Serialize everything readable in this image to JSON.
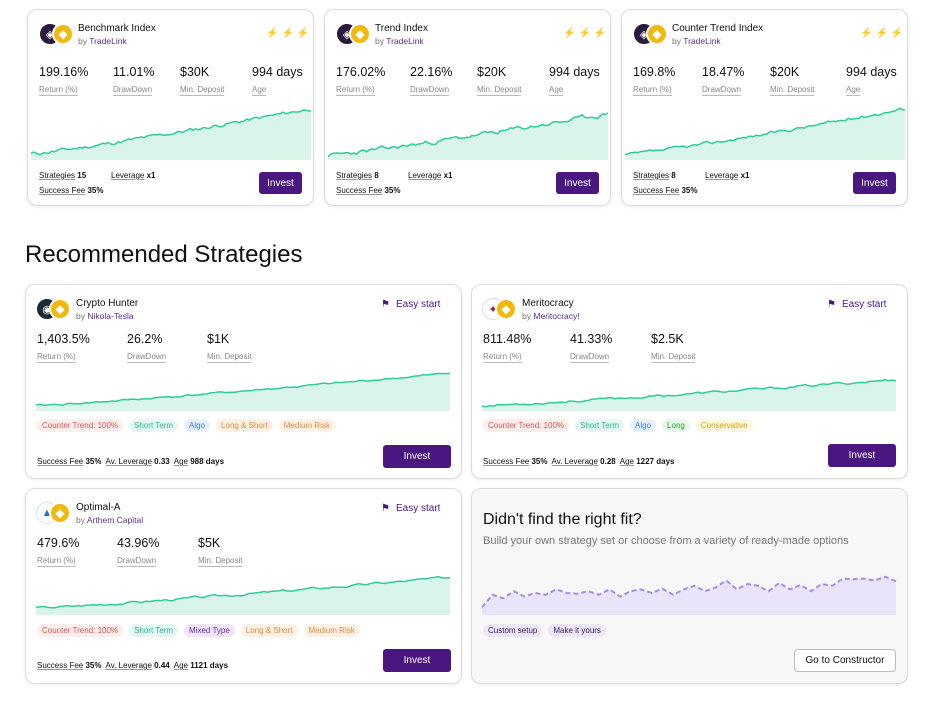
{
  "colors": {
    "accent": "#4a1780",
    "line": "#2ecc9a",
    "fill": "#d9f5ea",
    "fit_line": "#a58fe0",
    "fit_fill": "#eae4fa"
  },
  "top_cards": [
    {
      "name": "Benchmark Index",
      "by_prefix": "by",
      "by": "TradeLink",
      "stats": [
        {
          "value": "199.16%",
          "label": "Return (%)"
        },
        {
          "value": "11.01%",
          "label": "DrawDown"
        },
        {
          "value": "$30K",
          "label": "Min. Deposit"
        },
        {
          "value": "994 days",
          "label": "Age"
        }
      ],
      "strategies_label": "Strategies",
      "strategies": "15",
      "leverage_label": "Leverage",
      "leverage": "x1",
      "fee_label": "Success Fee",
      "fee": "35%",
      "invest": "Invest"
    },
    {
      "name": "Trend Index",
      "by_prefix": "by",
      "by": "TradeLink",
      "stats": [
        {
          "value": "176.02%",
          "label": "Return (%)"
        },
        {
          "value": "22.16%",
          "label": "DrawDown"
        },
        {
          "value": "$20K",
          "label": "Min. Deposit"
        },
        {
          "value": "994 days",
          "label": "Age"
        }
      ],
      "strategies_label": "Strategies",
      "strategies": "8",
      "leverage_label": "Leverage",
      "leverage": "x1",
      "fee_label": "Success Fee",
      "fee": "35%",
      "invest": "Invest"
    },
    {
      "name": "Counter Trend Index",
      "by_prefix": "by",
      "by": "TradeLink",
      "stats": [
        {
          "value": "169.8%",
          "label": "Return (%)"
        },
        {
          "value": "18.47%",
          "label": "DrawDown"
        },
        {
          "value": "$20K",
          "label": "Min. Deposit"
        },
        {
          "value": "994 days",
          "label": "Age"
        }
      ],
      "strategies_label": "Strategies",
      "strategies": "8",
      "leverage_label": "Leverage",
      "leverage": "x1",
      "fee_label": "Success Fee",
      "fee": "35%",
      "invest": "Invest"
    }
  ],
  "section_title": "Recommended Strategies",
  "rec_cards": [
    {
      "name": "Crypto Hunter",
      "by_prefix": "by",
      "by": "Nikola-Tesla",
      "easy": "Easy start",
      "stats": [
        {
          "value": "1,403.5%",
          "label": "Return (%)"
        },
        {
          "value": "26.2%",
          "label": "DrawDown"
        },
        {
          "value": "$1K",
          "label": "Min. Deposit"
        }
      ],
      "tags": [
        {
          "text": "Counter Trend: 100%",
          "style": "red"
        },
        {
          "text": "Short Term",
          "style": "teal"
        },
        {
          "text": "Algo",
          "style": "blue"
        },
        {
          "text": "Long & Short",
          "style": "orange"
        },
        {
          "text": "Medium Risk",
          "style": "orange"
        }
      ],
      "fee_label": "Success Fee",
      "fee": "35%",
      "lev_label": "Av. Leverage",
      "lev": "0.33",
      "age_label": "Age",
      "age": "988 days",
      "invest": "Invest"
    },
    {
      "name": "Meritocracy",
      "by_prefix": "by",
      "by": "Meritocracy!",
      "easy": "Easy start",
      "stats": [
        {
          "value": "811.48%",
          "label": "Return (%)"
        },
        {
          "value": "41.33%",
          "label": "DrawDown"
        },
        {
          "value": "$2.5K",
          "label": "Min. Deposit"
        }
      ],
      "tags": [
        {
          "text": "Counter Trend: 100%",
          "style": "red"
        },
        {
          "text": "Short Term",
          "style": "teal"
        },
        {
          "text": "Algo",
          "style": "blue"
        },
        {
          "text": "Long",
          "style": "green"
        },
        {
          "text": "Conservative",
          "style": "yellow"
        }
      ],
      "fee_label": "Success Fee",
      "fee": "35%",
      "lev_label": "Av. Leverage",
      "lev": "0.28",
      "age_label": "Age",
      "age": "1227 days",
      "invest": "Invest"
    },
    {
      "name": "Optimal-A",
      "by_prefix": "by",
      "by": "Arthem Capital",
      "easy": "Easy start",
      "stats": [
        {
          "value": "479.6%",
          "label": "Return (%)"
        },
        {
          "value": "43.96%",
          "label": "DrawDown"
        },
        {
          "value": "$5K",
          "label": "Min. Deposit"
        }
      ],
      "tags": [
        {
          "text": "Counter Trend: 100%",
          "style": "red"
        },
        {
          "text": "Short Term",
          "style": "teal"
        },
        {
          "text": "Mixed Type",
          "style": "purple"
        },
        {
          "text": "Long & Short",
          "style": "orange"
        },
        {
          "text": "Medium Risk",
          "style": "orange"
        }
      ],
      "fee_label": "Success Fee",
      "fee": "35%",
      "lev_label": "Av. Leverage",
      "lev": "0.44",
      "age_label": "Age",
      "age": "1121 days",
      "invest": "Invest"
    }
  ],
  "fit_card": {
    "title": "Didn't find the right fit?",
    "subtitle": "Build your own strategy set or choose from a variety of ready-made options",
    "tags": [
      "Custom setup",
      "Make it yours"
    ],
    "button": "Go to Constructor"
  },
  "icons": {
    "bolt": "lightning-icon",
    "flag": "flag-icon",
    "coin": "binance-coin-icon"
  }
}
